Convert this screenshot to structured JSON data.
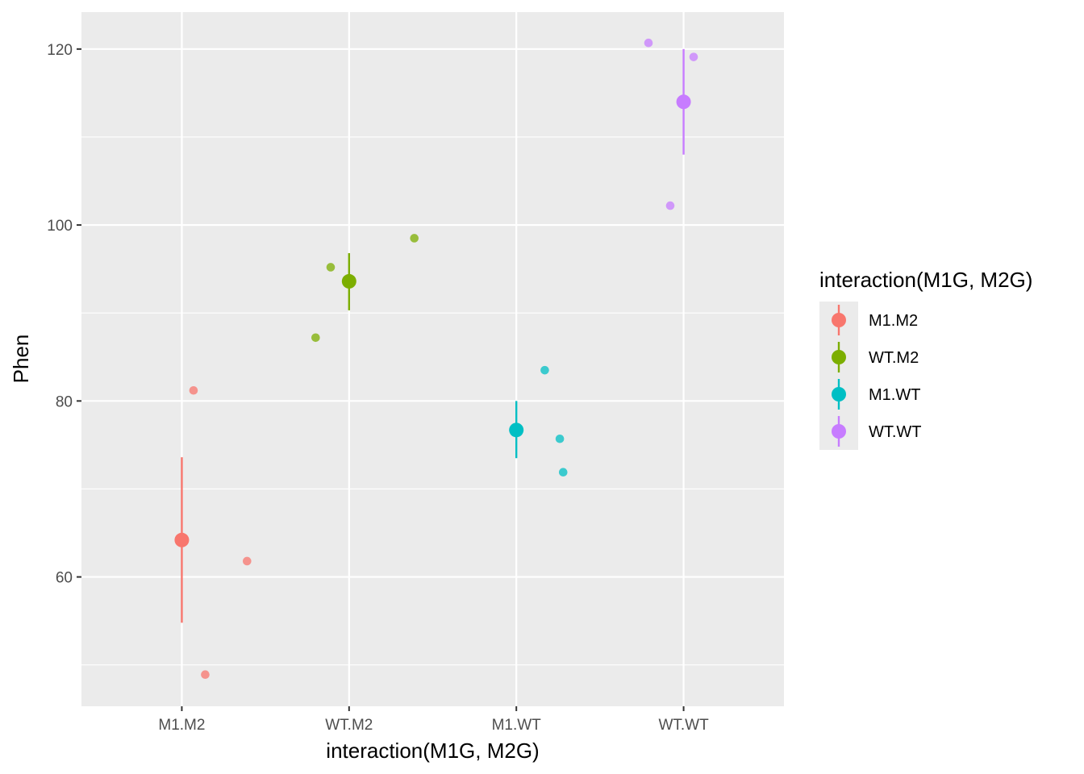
{
  "chart_data": {
    "type": "scatter",
    "xlabel": "interaction(M1G, M2G)",
    "ylabel": "Phen",
    "categories": [
      "M1.M2",
      "WT.M2",
      "M1.WT",
      "WT.WT"
    ],
    "yticks": [
      60,
      80,
      100,
      120
    ],
    "ylim": [
      45.3,
      124.2
    ],
    "grid": true,
    "legend": {
      "title": "interaction(M1G, M2G)",
      "placement": "right",
      "entries": [
        "M1.M2",
        "WT.M2",
        "M1.WT",
        "WT.WT"
      ]
    },
    "colors": {
      "M1.M2": "#F8766D",
      "WT.M2": "#7CAE00",
      "M1.WT": "#00BFC4",
      "WT.WT": "#C77CFF"
    },
    "series": [
      {
        "category": "M1.M2",
        "mean": 64.2,
        "ci": [
          54.8,
          73.6
        ],
        "points": [
          {
            "x": 1.07,
            "y": 81.2
          },
          {
            "x": 1.39,
            "y": 61.8
          },
          {
            "x": 1.14,
            "y": 48.9
          }
        ]
      },
      {
        "category": "WT.M2",
        "mean": 93.6,
        "ci": [
          90.3,
          96.8
        ],
        "points": [
          {
            "x": 1.89,
            "y": 95.2
          },
          {
            "x": 2.39,
            "y": 98.5
          },
          {
            "x": 1.8,
            "y": 87.2
          }
        ]
      },
      {
        "category": "M1.WT",
        "mean": 76.7,
        "ci": [
          73.5,
          80.0
        ],
        "points": [
          {
            "x": 3.17,
            "y": 83.5
          },
          {
            "x": 3.26,
            "y": 75.7
          },
          {
            "x": 3.28,
            "y": 71.9
          }
        ]
      },
      {
        "category": "WT.WT",
        "mean": 114.0,
        "ci": [
          108.0,
          120.0
        ],
        "points": [
          {
            "x": 3.79,
            "y": 120.7
          },
          {
            "x": 4.06,
            "y": 119.1
          },
          {
            "x": 3.92,
            "y": 102.2
          }
        ]
      }
    ]
  }
}
